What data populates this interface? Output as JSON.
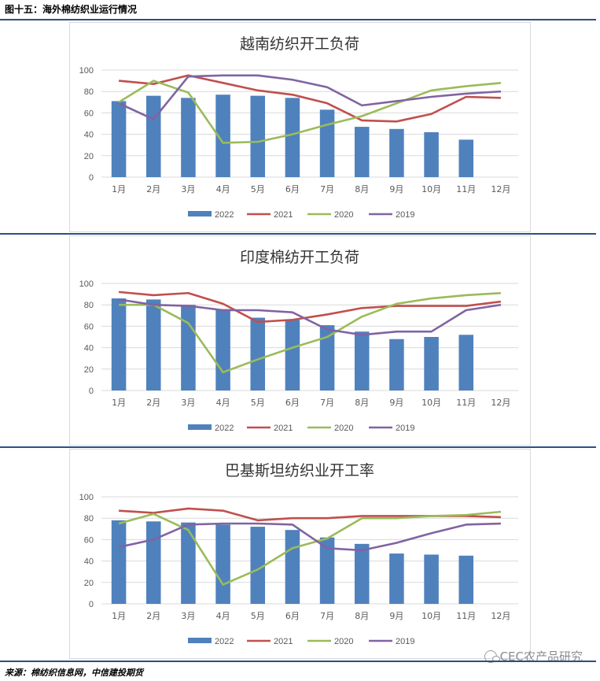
{
  "figure_title": "图十五：海外棉纺织业运行情况",
  "source": "来源：棉纺织信息网，中信建投期货",
  "watermark": "CEC农产品研究",
  "colors": {
    "rule": "#2d4f86",
    "y2022": "#4f81bd",
    "y2021": "#c0504d",
    "y2020": "#9bbb59",
    "y2019": "#8064a2",
    "grid": "#d9d9d9"
  },
  "chart_data": [
    {
      "type": "bar",
      "title": "越南纺织开工负荷",
      "categories": [
        "1月",
        "2月",
        "3月",
        "4月",
        "5月",
        "6月",
        "7月",
        "8月",
        "9月",
        "10月",
        "11月",
        "12月"
      ],
      "ylim": [
        0,
        100
      ],
      "yticks": [
        0,
        20,
        40,
        60,
        80,
        100
      ],
      "grid": true,
      "legend": "bottom",
      "series": [
        {
          "name": "2022",
          "kind": "bar",
          "values": [
            71,
            76,
            74,
            77,
            76,
            74,
            63,
            47,
            45,
            42,
            35,
            null
          ]
        },
        {
          "name": "2021",
          "kind": "line",
          "values": [
            90,
            87,
            95,
            88,
            81,
            77,
            69,
            53,
            52,
            59,
            75,
            74
          ]
        },
        {
          "name": "2020",
          "kind": "line",
          "values": [
            70,
            90,
            79,
            32,
            33,
            40,
            49,
            57,
            69,
            81,
            85,
            88
          ]
        },
        {
          "name": "2019",
          "kind": "line",
          "values": [
            69,
            54,
            94,
            95,
            95,
            91,
            84,
            67,
            71,
            75,
            78,
            80
          ]
        }
      ]
    },
    {
      "type": "bar",
      "title": "印度棉纺开工负荷",
      "categories": [
        "1月",
        "2月",
        "3月",
        "4月",
        "5月",
        "6月",
        "7月",
        "8月",
        "9月",
        "10月",
        "11月",
        "12月"
      ],
      "ylim": [
        0,
        100
      ],
      "yticks": [
        0,
        20,
        40,
        60,
        80,
        100
      ],
      "grid": true,
      "legend": "bottom",
      "series": [
        {
          "name": "2022",
          "kind": "bar",
          "values": [
            86,
            85,
            80,
            76,
            68,
            66,
            61,
            55,
            48,
            50,
            52,
            null
          ]
        },
        {
          "name": "2021",
          "kind": "line",
          "values": [
            92,
            89,
            91,
            81,
            64,
            66,
            71,
            77,
            79,
            79,
            79,
            83
          ]
        },
        {
          "name": "2020",
          "kind": "line",
          "values": [
            80,
            80,
            63,
            17,
            29,
            40,
            50,
            69,
            81,
            86,
            89,
            91
          ]
        },
        {
          "name": "2019",
          "kind": "line",
          "values": [
            85,
            80,
            79,
            75,
            75,
            73,
            57,
            52,
            55,
            55,
            75,
            80
          ]
        }
      ]
    },
    {
      "type": "bar",
      "title": "巴基斯坦纺织业开工率",
      "categories": [
        "1月",
        "2月",
        "3月",
        "4月",
        "5月",
        "6月",
        "7月",
        "8月",
        "9月",
        "10月",
        "11月",
        "12月"
      ],
      "ylim": [
        0,
        100
      ],
      "yticks": [
        0,
        20,
        40,
        60,
        80,
        100
      ],
      "grid": true,
      "legend": "bottom",
      "series": [
        {
          "name": "2022",
          "kind": "bar",
          "values": [
            78,
            77,
            76,
            74,
            72,
            69,
            62,
            56,
            47,
            46,
            45,
            null
          ]
        },
        {
          "name": "2021",
          "kind": "line",
          "values": [
            87,
            85,
            89,
            87,
            78,
            80,
            80,
            82,
            82,
            82,
            82,
            81
          ]
        },
        {
          "name": "2020",
          "kind": "line",
          "values": [
            75,
            84,
            69,
            18,
            32,
            52,
            61,
            80,
            80,
            82,
            83,
            86
          ]
        },
        {
          "name": "2019",
          "kind": "line",
          "values": [
            53,
            60,
            74,
            75,
            75,
            74,
            52,
            50,
            57,
            66,
            74,
            75
          ]
        }
      ]
    }
  ]
}
